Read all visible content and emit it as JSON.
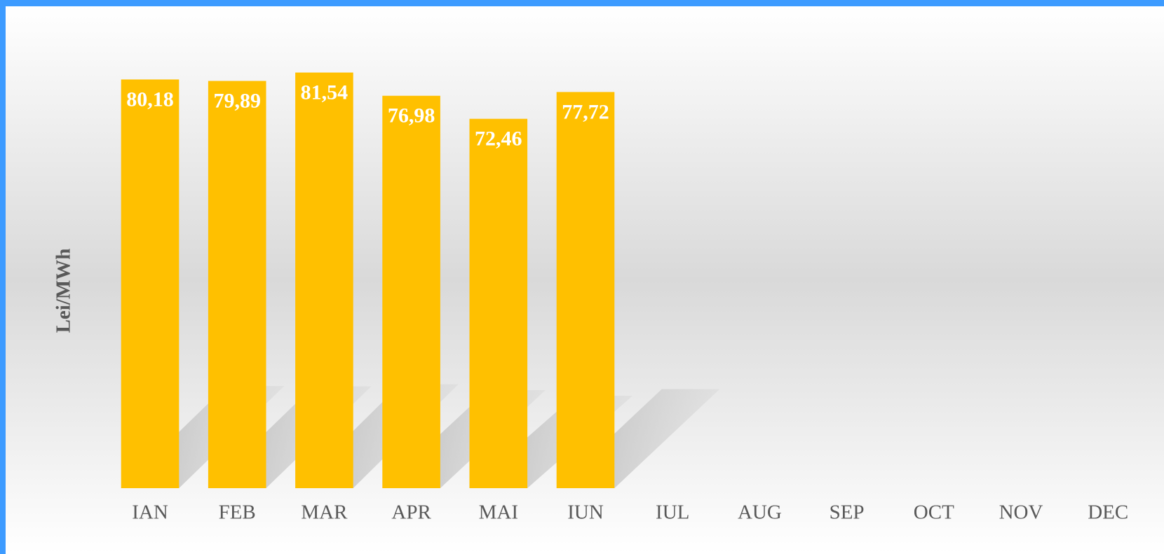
{
  "chart_data": {
    "type": "bar",
    "y_label": "Lei/MWh",
    "categories": [
      "IAN",
      "FEB",
      "MAR",
      "APR",
      "MAI",
      "IUN",
      "IUL",
      "AUG",
      "SEP",
      "OCT",
      "NOV",
      "DEC"
    ],
    "values": [
      80.18,
      79.89,
      81.54,
      76.98,
      72.46,
      77.72,
      null,
      null,
      null,
      null,
      null,
      null
    ],
    "value_labels": [
      "80,18",
      "79,89",
      "81,54",
      "76,98",
      "72,46",
      "77,72",
      null,
      null,
      null,
      null,
      null,
      null
    ],
    "color": "#ffc000",
    "ylim": [
      0,
      90
    ]
  }
}
